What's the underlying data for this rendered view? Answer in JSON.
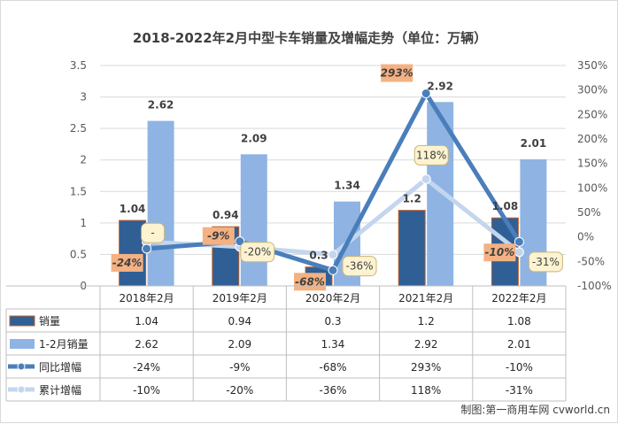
{
  "chart_data": {
    "type": "bar",
    "title": "2018-2022年2月中型卡车销量及增幅走势（单位：万辆）",
    "categories": [
      "2018年2月",
      "2019年2月",
      "2020年2月",
      "2021年2月",
      "2022年2月"
    ],
    "series": [
      {
        "name": "销量",
        "kind": "bar",
        "axis": "left",
        "color": "#2f5f95",
        "values": [
          1.04,
          0.94,
          0.3,
          1.2,
          1.08
        ],
        "labels": [
          "1.04",
          "0.94",
          "0.3",
          "1.2",
          "1.08"
        ]
      },
      {
        "name": "1-2月销量",
        "kind": "bar",
        "axis": "left",
        "color": "#8fb4e3",
        "values": [
          2.62,
          2.09,
          1.34,
          2.92,
          2.01
        ],
        "labels": [
          "2.62",
          "2.09",
          "1.34",
          "2.92",
          "2.01"
        ]
      },
      {
        "name": "同比增幅",
        "kind": "line",
        "axis": "right",
        "color": "#4a7ebb",
        "values": [
          -24,
          -9,
          -68,
          293,
          -10
        ],
        "labels": [
          "-24%",
          "-9%",
          "-68%",
          "293%",
          "-10%"
        ]
      },
      {
        "name": "累计增幅",
        "kind": "line",
        "axis": "right",
        "color": "#c4d6ee",
        "values": [
          -10,
          -20,
          -36,
          118,
          -31
        ],
        "labels": [
          "-",
          "-20%",
          "-36%",
          "118%",
          "-31%"
        ]
      }
    ],
    "left_axis": {
      "min": 0,
      "max": 3.5,
      "ticks": [
        "0",
        "0.5",
        "1",
        "1.5",
        "2",
        "2.5",
        "3",
        "3.5"
      ]
    },
    "right_axis": {
      "min": -100,
      "max": 350,
      "ticks": [
        "-100%",
        "-50%",
        "0%",
        "50%",
        "100%",
        "150%",
        "200%",
        "250%",
        "300%",
        "350%"
      ]
    },
    "grid": true,
    "data_table": {
      "rows": [
        {
          "name": "销量",
          "cells": [
            "1.04",
            "0.94",
            "0.3",
            "1.2",
            "1.08"
          ]
        },
        {
          "name": "1-2月销量",
          "cells": [
            "2.62",
            "2.09",
            "1.34",
            "2.92",
            "2.01"
          ]
        },
        {
          "name": "同比增幅",
          "cells": [
            "-24%",
            "-9%",
            "-68%",
            "293%",
            "-10%"
          ]
        },
        {
          "name": "累计增幅",
          "cells": [
            "-10%",
            "-20%",
            "-36%",
            "118%",
            "-31%"
          ]
        }
      ]
    },
    "label_colors": {
      "yoy_fill": "#f4b183",
      "cum_fill": "#fdf3d0",
      "cum_border": "#c9b47a"
    }
  },
  "credit": "制图:第一商用车网 cvworld.cn"
}
